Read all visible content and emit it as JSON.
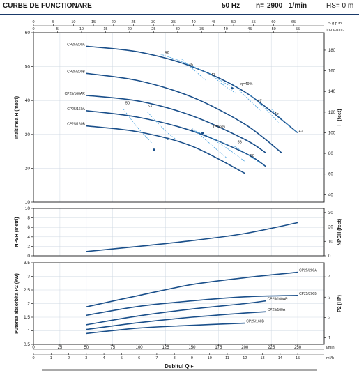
{
  "header": {
    "title": "CURBE DE FUNCTIONARE",
    "frequency": "50 Hz",
    "speed_prefix": "n=",
    "speed": "2900",
    "speed_unit": "1/min",
    "hs": "HS= 0 m"
  },
  "colors": {
    "curve": "#1a4f8a",
    "dashed": "#4aa3df",
    "axis": "#1a1a1a",
    "grid": "#cfd8e3",
    "header_rule": "#1a3a6a"
  },
  "chart_data": [
    {
      "type": "line",
      "panel": "head",
      "ylabel": "Inaltimea H (metri)",
      "ylabel_right": "H (feet)",
      "ylim": [
        10,
        60
      ],
      "ylim_feet": [
        32.8,
        196.9
      ],
      "yticks": [
        10,
        20,
        30,
        40,
        50,
        60
      ],
      "yticks_right": [
        40,
        60,
        80,
        100,
        120,
        140,
        160,
        180
      ],
      "top_axis_us": {
        "label": "US g.p.m.",
        "ticks": [
          0,
          5,
          10,
          15,
          20,
          25,
          30,
          35,
          40,
          45,
          50,
          55,
          60,
          65
        ]
      },
      "top_axis_imp": {
        "label": "Imp g.p.m.",
        "ticks": [
          0,
          5,
          10,
          15,
          20,
          25,
          30,
          35,
          40,
          45,
          50,
          55
        ]
      },
      "series": [
        {
          "name": "CP25/200A",
          "x": [
            50,
            100,
            150,
            200,
            250
          ],
          "y": [
            56,
            54.3,
            50,
            42.5,
            30.5
          ]
        },
        {
          "name": "CP25/200B",
          "x": [
            50,
            100,
            150,
            200,
            235
          ],
          "y": [
            48,
            45.8,
            41,
            33,
            24.5
          ]
        },
        {
          "name": "CP25/160AR",
          "x": [
            50,
            100,
            150,
            200,
            220
          ],
          "y": [
            41.5,
            39.8,
            35.5,
            28.5,
            24.5
          ]
        },
        {
          "name": "CP25/160A",
          "x": [
            50,
            100,
            150,
            200,
            220
          ],
          "y": [
            37,
            35,
            31,
            24.5,
            20.5
          ]
        },
        {
          "name": "CP25/160B",
          "x": [
            50,
            100,
            150,
            200
          ],
          "y": [
            32.5,
            30.7,
            26.5,
            18.5
          ]
        }
      ],
      "efficiency_labels": [
        "42",
        "45",
        "47",
        "η=49%",
        "47",
        "45",
        "42",
        "50",
        "53",
        "η=56%",
        "53",
        "50"
      ]
    },
    {
      "type": "line",
      "panel": "npsh",
      "ylabel": "NPSH (metri)",
      "ylabel_right": "NPSH (feet)",
      "ylim": [
        0,
        10
      ],
      "yticks": [
        0,
        2,
        4,
        6,
        8,
        10
      ],
      "yticks_right": [
        0,
        10,
        20,
        30
      ],
      "series": [
        {
          "name": "NPSH",
          "x": [
            50,
            100,
            150,
            200,
            250
          ],
          "y": [
            0.9,
            2.0,
            3.2,
            4.7,
            7.0
          ]
        }
      ]
    },
    {
      "type": "line",
      "panel": "power",
      "ylabel": "Puterea absorbita P2 (kW)",
      "ylabel_right": "P2 (HP)",
      "ylim": [
        0.5,
        3.5
      ],
      "yticks": [
        0.5,
        1.0,
        1.5,
        2.0,
        2.5,
        3.0,
        3.5
      ],
      "yticks_right": [
        1,
        2,
        3,
        4
      ],
      "x_axis": {
        "label": "Debitul Q",
        "unit": "l/min",
        "ticks": [
          0,
          25,
          50,
          75,
          100,
          125,
          150,
          175,
          200,
          225,
          250
        ]
      },
      "x_axis_m3h": {
        "unit": "m³/h",
        "ticks": [
          0,
          1,
          2,
          3,
          4,
          5,
          6,
          7,
          8,
          9,
          10,
          11,
          12,
          13,
          14,
          15
        ]
      },
      "series": [
        {
          "name": "CP25/200A",
          "x": [
            50,
            100,
            150,
            200,
            250
          ],
          "y": [
            1.88,
            2.3,
            2.7,
            2.95,
            3.15
          ]
        },
        {
          "name": "CP25/200B",
          "x": [
            50,
            100,
            150,
            200,
            250
          ],
          "y": [
            1.57,
            1.9,
            2.1,
            2.25,
            2.3
          ]
        },
        {
          "name": "CP25/160AR",
          "x": [
            50,
            100,
            150,
            200,
            220
          ],
          "y": [
            1.22,
            1.55,
            1.8,
            2.0,
            2.1
          ]
        },
        {
          "name": "CP25/160A",
          "x": [
            50,
            100,
            150,
            200,
            220
          ],
          "y": [
            1.05,
            1.3,
            1.5,
            1.65,
            1.7
          ]
        },
        {
          "name": "CP25/160B",
          "x": [
            50,
            100,
            150,
            200
          ],
          "y": [
            0.9,
            1.1,
            1.2,
            1.28
          ]
        }
      ]
    }
  ]
}
